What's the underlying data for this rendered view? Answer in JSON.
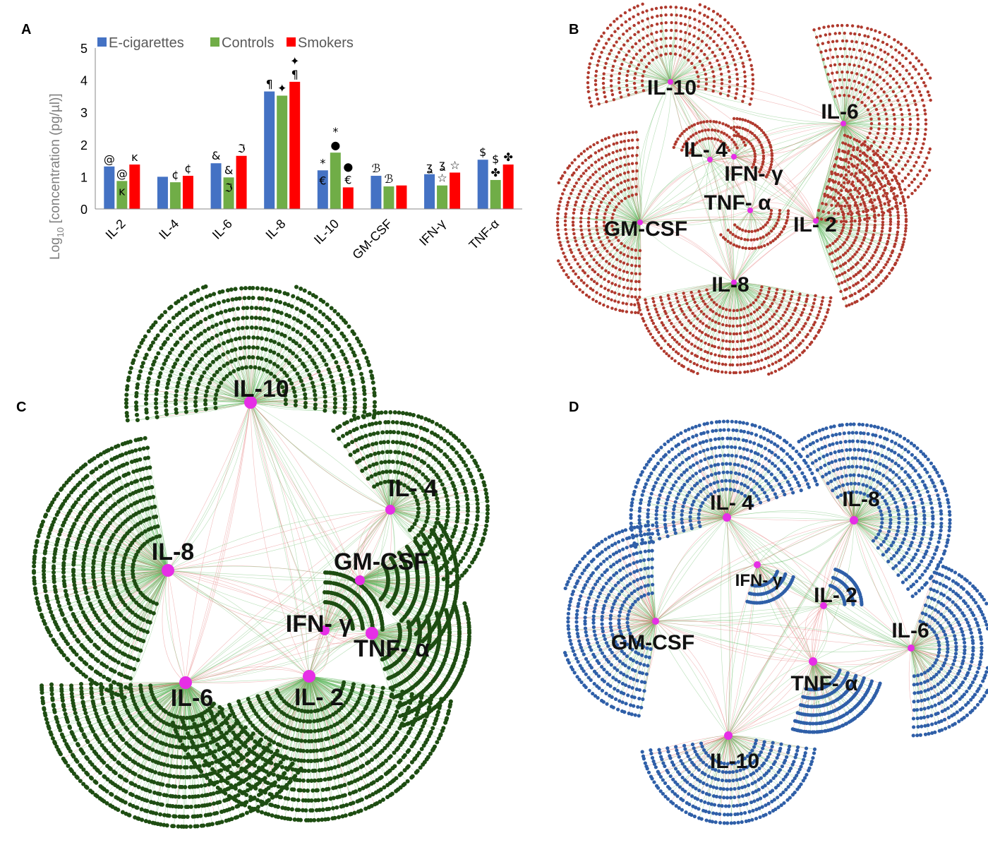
{
  "panels": {
    "a": "A",
    "b": "B",
    "c": "C",
    "d": "D"
  },
  "chart_data": [
    {
      "type": "bar",
      "panel": "A",
      "ylabel_main": "Log",
      "ylabel_sub": "10",
      "ylabel_rest": " [concentration (pg/µl)]",
      "ylim": [
        0,
        5
      ],
      "yticks": [
        "0",
        "1",
        "2",
        "3",
        "4",
        "5"
      ],
      "categories": [
        "IL-2",
        "IL-4",
        "IL-6",
        "IL-8",
        "IL-10",
        "GM-CSF",
        "IFN-γ",
        "TNF-α"
      ],
      "series": [
        {
          "name": "E-cigarettes",
          "color": "#4472c4",
          "values": [
            1.32,
            1.0,
            1.42,
            3.65,
            1.2,
            1.03,
            1.08,
            1.53
          ]
        },
        {
          "name": "Controls",
          "color": "#70ad47",
          "values": [
            0.87,
            0.83,
            0.98,
            3.52,
            1.75,
            0.7,
            0.73,
            0.9
          ]
        },
        {
          "name": "Smokers",
          "color": "#ff0000",
          "values": [
            1.38,
            1.03,
            1.65,
            3.95,
            0.67,
            0.73,
            1.13,
            1.38
          ]
        }
      ],
      "grid": false,
      "legend_position": "top",
      "annotations": [
        {
          "category": 0,
          "series": 0,
          "text": "@"
        },
        {
          "category": 0,
          "series": 1,
          "text": "@"
        },
        {
          "category": 0,
          "series": 1,
          "text": "ĸ",
          "inside": true
        },
        {
          "category": 0,
          "series": 2,
          "text": "ĸ"
        },
        {
          "category": 1,
          "series": 1,
          "text": "¢"
        },
        {
          "category": 1,
          "series": 2,
          "text": "¢"
        },
        {
          "category": 2,
          "series": 0,
          "text": "&"
        },
        {
          "category": 2,
          "series": 1,
          "text": "&"
        },
        {
          "category": 2,
          "series": 1,
          "text": "ℑ",
          "inside": true
        },
        {
          "category": 2,
          "series": 2,
          "text": "ℑ"
        },
        {
          "category": 3,
          "series": 0,
          "text": "¶"
        },
        {
          "category": 3,
          "series": 1,
          "text": "✦"
        },
        {
          "category": 3,
          "series": 2,
          "text": "¶"
        },
        {
          "category": 3,
          "series": 2,
          "text": "✦",
          "stack": 2
        },
        {
          "category": 4,
          "series": 0,
          "text": "*"
        },
        {
          "category": 4,
          "series": 0,
          "text": "€",
          "inside": true
        },
        {
          "category": 4,
          "series": 1,
          "text": "●"
        },
        {
          "category": 4,
          "series": 1,
          "text": "*",
          "stack": 2
        },
        {
          "category": 4,
          "series": 2,
          "text": "●",
          "stack": 2
        },
        {
          "category": 4,
          "series": 2,
          "text": "€"
        },
        {
          "category": 5,
          "series": 0,
          "text": "ℬ"
        },
        {
          "category": 5,
          "series": 1,
          "text": "ℬ"
        },
        {
          "category": 6,
          "series": 0,
          "text": "ʓ"
        },
        {
          "category": 6,
          "series": 1,
          "text": "☆"
        },
        {
          "category": 6,
          "series": 1,
          "text": "ʓ",
          "stack": 2
        },
        {
          "category": 6,
          "series": 2,
          "text": "☆"
        },
        {
          "category": 7,
          "series": 0,
          "text": "$"
        },
        {
          "category": 7,
          "series": 1,
          "text": "✤"
        },
        {
          "category": 7,
          "series": 1,
          "text": "$",
          "stack": 2
        },
        {
          "category": 7,
          "series": 2,
          "text": "✤"
        }
      ]
    }
  ],
  "networks": [
    {
      "panel": "B",
      "node_color": "#b03a2e",
      "hubs": [
        "IL-10",
        "IL-6",
        "IL- 4",
        "IFN- γ",
        "TNF- α",
        "GM-CSF",
        "IL- 2",
        "IL-8"
      ]
    },
    {
      "panel": "C",
      "node_color": "#1e4d12",
      "hubs": [
        "IL-10",
        "IL- 4",
        "IL-8",
        "GM-CSF",
        "IFN- γ",
        "TNF- α",
        "IL-6",
        "IL- 2"
      ]
    },
    {
      "panel": "D",
      "node_color": "#2f5fa8",
      "hubs": [
        "IL- 4",
        "IL-8",
        "IFN- γ",
        "IL- 2",
        "GM-CSF",
        "IL-6",
        "TNF- α",
        "IL-10"
      ]
    }
  ]
}
